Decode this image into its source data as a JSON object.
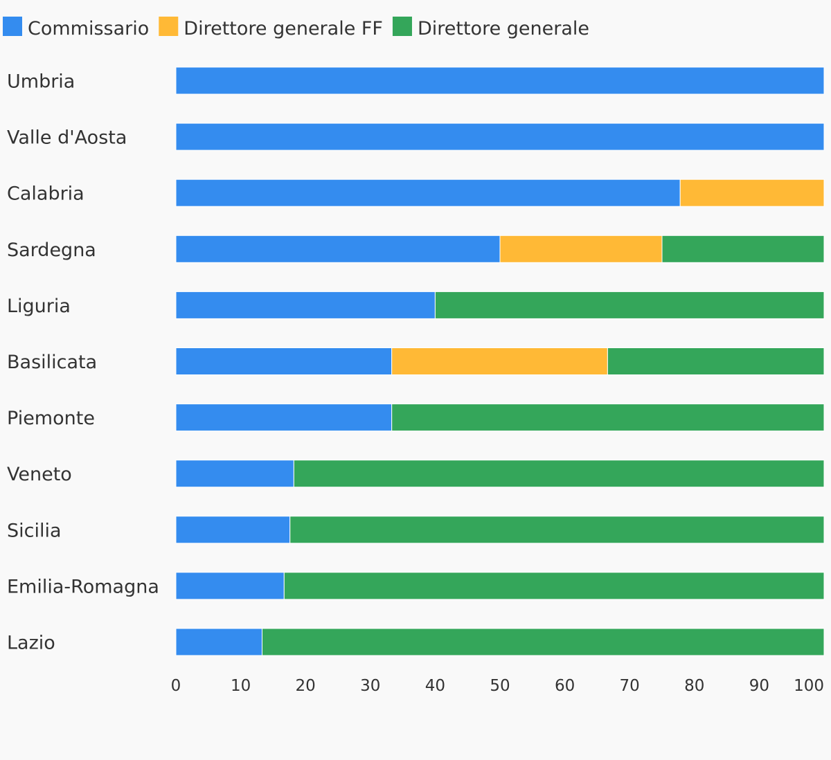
{
  "chart_data": {
    "type": "bar",
    "orientation": "horizontal",
    "stacked": true,
    "title": "",
    "xlabel": "",
    "ylabel": "",
    "xlim": [
      0,
      100
    ],
    "x_ticks": [
      0,
      10,
      20,
      30,
      40,
      50,
      60,
      70,
      80,
      90,
      100
    ],
    "grid": false,
    "legend_position": "top-left",
    "categories": [
      "Umbria",
      "Valle d'Aosta",
      "Calabria",
      "Sardegna",
      "Liguria",
      "Basilicata",
      "Piemonte",
      "Veneto",
      "Sicilia",
      "Emilia-Romagna",
      "Lazio"
    ],
    "series": [
      {
        "name": "Commissario",
        "color": "#348cef",
        "values": [
          100,
          100,
          77.8,
          50,
          40,
          33.3,
          33.3,
          18.2,
          17.6,
          16.7,
          13.3
        ]
      },
      {
        "name": "Direttore generale FF",
        "color": "#ffb936",
        "values": [
          0,
          0,
          22.2,
          25,
          0,
          33.3,
          0,
          0,
          0,
          0,
          0
        ]
      },
      {
        "name": "Direttore generale",
        "color": "#34a65a",
        "values": [
          0,
          0,
          0,
          25,
          60,
          33.4,
          66.7,
          81.8,
          82.4,
          83.3,
          86.7
        ]
      }
    ]
  }
}
